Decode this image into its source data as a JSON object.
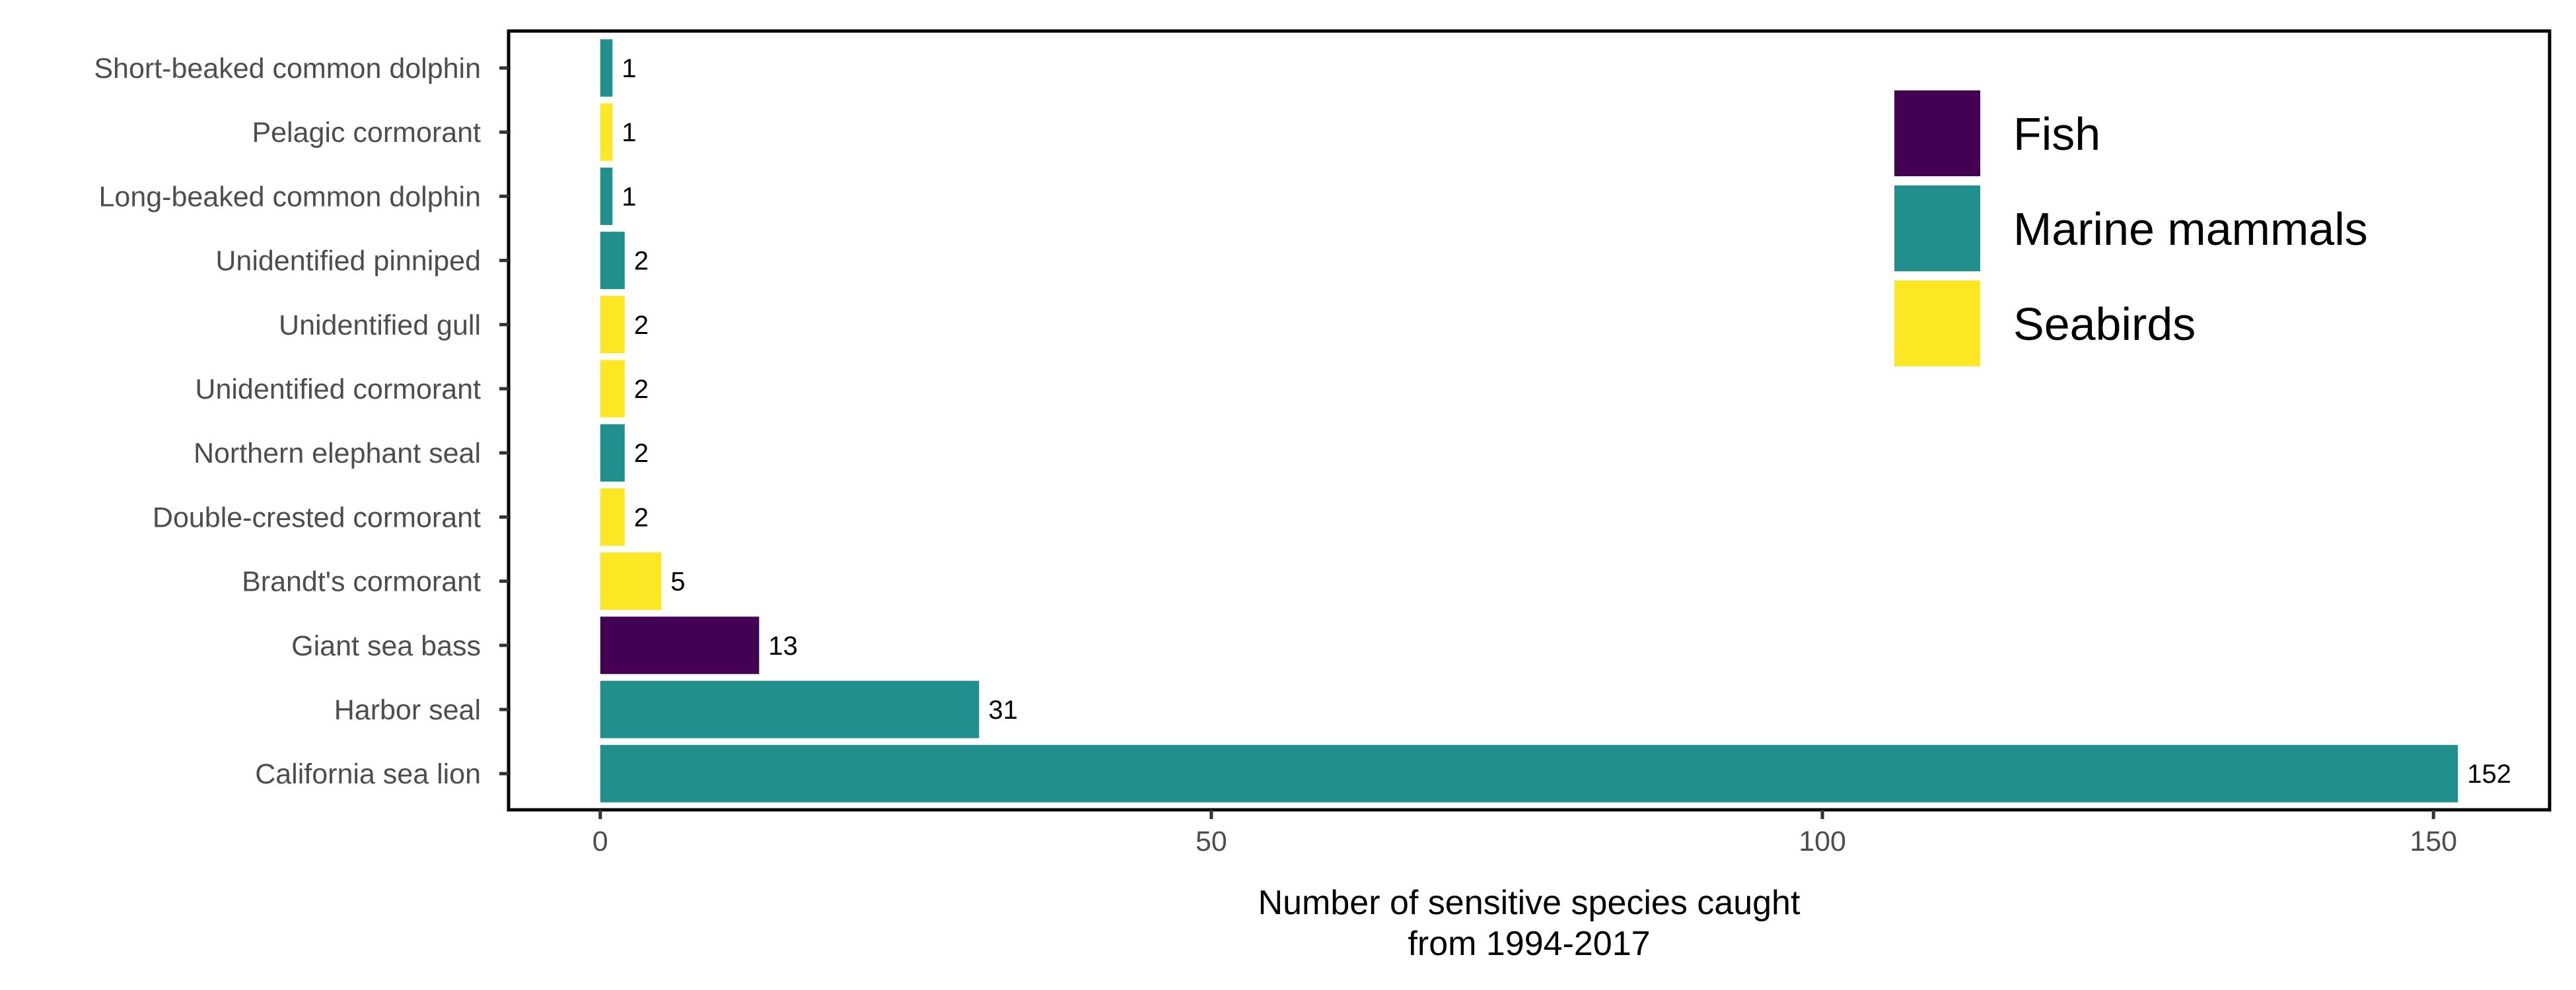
{
  "chart_data": {
    "type": "bar",
    "orientation": "horizontal",
    "title": "",
    "xlabel_lines": [
      "Number of sensitive species caught",
      "from 1994-2017"
    ],
    "ylabel": "",
    "xlim": [
      -7.5,
      159.5
    ],
    "xticks": [
      0,
      50,
      100,
      150
    ],
    "grid": false,
    "legend_position": "top-right",
    "legend": [
      {
        "name": "Fish",
        "color": "#440154"
      },
      {
        "name": "Marine mammals",
        "color": "#21908C"
      },
      {
        "name": "Seabirds",
        "color": "#FDE725"
      }
    ],
    "categories": [
      "Short-beaked common dolphin",
      "Pelagic cormorant",
      "Long-beaked common dolphin",
      "Unidentified pinniped",
      "Unidentified gull",
      "Unidentified cormorant",
      "Northern elephant seal",
      "Double-crested cormorant",
      "Brandt's cormorant",
      "Giant sea bass",
      "Harbor seal",
      "California sea lion"
    ],
    "values": [
      1,
      1,
      1,
      2,
      2,
      2,
      2,
      2,
      5,
      13,
      31,
      152
    ],
    "groups": [
      "Marine mammals",
      "Seabirds",
      "Marine mammals",
      "Marine mammals",
      "Seabirds",
      "Seabirds",
      "Marine mammals",
      "Seabirds",
      "Seabirds",
      "Fish",
      "Marine mammals",
      "Marine mammals"
    ]
  }
}
